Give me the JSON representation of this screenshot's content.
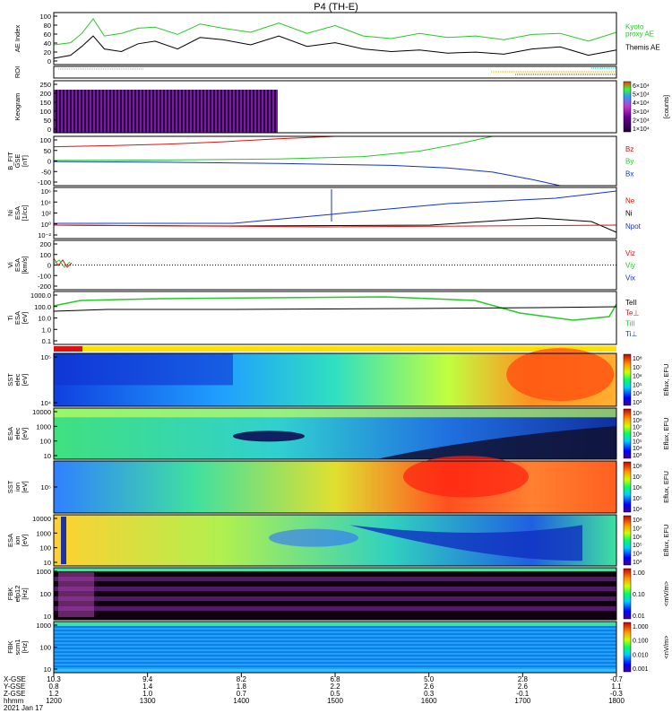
{
  "title": "P4 (TH-E)",
  "colors": {
    "kyoto": "#22cc22",
    "themis": "#000000",
    "red": "#dd1111",
    "green": "#22cc22",
    "blue": "#1133cc",
    "orange": "#ffa500",
    "yellow": "#ffe000",
    "cyan": "#00dddd"
  },
  "chart_data": [
    {
      "type": "line",
      "id": "ae",
      "ylabel": "AE Index",
      "ylim": [
        0,
        100
      ],
      "yticks": [
        "100",
        "80",
        "60",
        "40",
        "20",
        "0"
      ],
      "legend": [
        {
          "name": "Kyoto\nproxy AE",
          "color": "#22cc22"
        },
        {
          "name": "Themis AE",
          "color": "#000000"
        }
      ],
      "series": [
        {
          "name": "Kyoto proxy AE",
          "color": "#22cc22",
          "x": [
            0,
            0.03,
            0.05,
            0.07,
            0.09,
            0.12,
            0.15,
            0.18,
            0.22,
            0.26,
            0.3,
            0.35,
            0.4,
            0.45,
            0.5,
            0.55,
            0.6,
            0.65,
            0.7,
            0.75,
            0.8,
            0.85,
            0.9,
            0.95,
            1
          ],
          "values": [
            38,
            42,
            60,
            88,
            55,
            60,
            70,
            72,
            58,
            78,
            70,
            62,
            80,
            60,
            75,
            55,
            50,
            60,
            52,
            55,
            48,
            58,
            60,
            45,
            62
          ]
        },
        {
          "name": "Themis AE",
          "color": "#000000",
          "x": [
            0,
            0.03,
            0.05,
            0.07,
            0.09,
            0.12,
            0.15,
            0.18,
            0.22,
            0.26,
            0.3,
            0.35,
            0.4,
            0.45,
            0.5,
            0.55,
            0.6,
            0.65,
            0.7,
            0.75,
            0.8,
            0.85,
            0.9,
            0.95,
            1
          ],
          "values": [
            12,
            18,
            35,
            55,
            30,
            25,
            40,
            45,
            30,
            52,
            48,
            38,
            55,
            35,
            42,
            30,
            25,
            28,
            22,
            24,
            20,
            30,
            34,
            18,
            28
          ]
        }
      ]
    },
    {
      "type": "line",
      "id": "roi",
      "ylabel": "ROI",
      "legend": []
    },
    {
      "type": "heatmap",
      "id": "keogram",
      "ylabel": "Keogram",
      "ylim": [
        0,
        256
      ],
      "yticks": [
        "250",
        "200",
        "150",
        "100",
        "50",
        "0"
      ],
      "colorbar": {
        "label": "[counts]",
        "ticks": [
          "6×10⁴",
          "5×10⁴",
          "4×10⁴",
          "3×10⁴",
          "2×10⁴",
          "1×10⁴"
        ]
      }
    },
    {
      "type": "line",
      "id": "bfit",
      "ylabel": "B_FIT\nGSE\n[nT]",
      "ylim": [
        -100,
        100
      ],
      "yticks": [
        "100",
        "50",
        "0",
        "-50",
        "-100"
      ],
      "legend": [
        {
          "name": "Bz",
          "color": "#dd1111"
        },
        {
          "name": "By",
          "color": "#22cc22"
        },
        {
          "name": "Bx",
          "color": "#1133cc"
        }
      ],
      "series": [
        {
          "name": "Bz",
          "color": "#dd1111",
          "x": [
            0,
            0.1,
            0.2,
            0.3,
            0.4,
            0.5
          ],
          "values": [
            58,
            62,
            68,
            78,
            90,
            100
          ]
        },
        {
          "name": "By",
          "color": "#22cc22",
          "x": [
            0,
            0.2,
            0.4,
            0.55,
            0.65,
            0.72,
            0.78
          ],
          "values": [
            2,
            4,
            8,
            18,
            40,
            70,
            100
          ]
        },
        {
          "name": "Bx",
          "color": "#1133cc",
          "x": [
            0,
            0.2,
            0.4,
            0.6,
            0.7,
            0.78,
            0.85,
            0.9
          ],
          "values": [
            -2,
            -5,
            -10,
            -18,
            -28,
            -45,
            -75,
            -100
          ]
        }
      ]
    },
    {
      "type": "line",
      "id": "ni",
      "ylabel": "Ni\nESA\n[1/cc]",
      "ylog": true,
      "yticks": [
        "10⁶",
        "10⁴",
        "10²",
        "10⁰",
        "10⁻²"
      ],
      "legend": [
        {
          "name": "Ne",
          "color": "#dd1111"
        },
        {
          "name": "Ni",
          "color": "#000000"
        },
        {
          "name": "Npot",
          "color": "#1133cc"
        }
      ]
    },
    {
      "type": "line",
      "id": "vi",
      "ylabel": "Vi\nESA\n[km/s]",
      "yticks": [
        "200",
        "100",
        "0",
        "-100",
        "-200"
      ],
      "legend": [
        {
          "name": "Viz",
          "color": "#dd1111"
        },
        {
          "name": "Viy",
          "color": "#22cc22"
        },
        {
          "name": "Vix",
          "color": "#1133cc"
        }
      ]
    },
    {
      "type": "line",
      "id": "ti",
      "ylabel": "Ti\nESA\n[eV]",
      "ylog": true,
      "yticks": [
        "1000.0",
        "100.0",
        "10.0",
        "1.0",
        "0.1"
      ],
      "legend": [
        {
          "name": "TeII",
          "color": "#000000"
        },
        {
          "name": "Te⊥",
          "color": "#dd1111"
        },
        {
          "name": "TiII",
          "color": "#22cc22"
        },
        {
          "name": "Ti⊥",
          "color": "#1133cc"
        }
      ]
    },
    {
      "type": "heatmap",
      "id": "sst_e",
      "ylabel": "SST\nelec\n[eV]",
      "yticks": [
        "10⁵",
        "10⁴"
      ],
      "colorbar": {
        "label": "Eflux, EFU",
        "ticks": [
          "10⁸",
          "10⁷",
          "10⁶",
          "10⁵",
          "10⁴",
          "10³"
        ]
      }
    },
    {
      "type": "heatmap",
      "id": "esa_e",
      "ylabel": "ESA\nelec\n[eV]",
      "yticks": [
        "10000",
        "1000",
        "100",
        "10"
      ],
      "colorbar": {
        "label": "Eflux, EFU",
        "ticks": [
          "10⁹",
          "10⁸",
          "10⁷",
          "10⁶",
          "10⁵",
          "10⁴",
          "10³"
        ]
      }
    },
    {
      "type": "heatmap",
      "id": "sst_i",
      "ylabel": "SST\nion\n[eV]",
      "yticks": [
        "10⁵"
      ],
      "colorbar": {
        "label": "Eflux, EFU",
        "ticks": [
          "10⁸",
          "10⁷",
          "10⁶",
          "10⁵",
          "10⁴"
        ]
      }
    },
    {
      "type": "heatmap",
      "id": "esa_i",
      "ylabel": "ESA\nion\n[eV]",
      "yticks": [
        "10000",
        "1000",
        "100",
        "10"
      ],
      "colorbar": {
        "label": "Eflux, EFU",
        "ticks": [
          "10⁸",
          "10⁷",
          "10⁶",
          "10⁵",
          "10⁴",
          "10³"
        ]
      }
    },
    {
      "type": "heatmap",
      "id": "fbk1",
      "ylabel": "FBK\nefp12\n[Hz]",
      "yticks": [
        "1000",
        "100",
        "10"
      ],
      "colorbar": {
        "label": "<mV/m>",
        "ticks": [
          "1.00",
          "0.10",
          "0.01"
        ]
      }
    },
    {
      "type": "heatmap",
      "id": "fbk2",
      "ylabel": "FBK\nscm1\n[Hz]",
      "yticks": [
        "1000",
        "100",
        "10"
      ],
      "colorbar": {
        "label": "<nV/m>",
        "ticks": [
          "1.000",
          "0.100",
          "0.010",
          "0.001"
        ]
      }
    }
  ],
  "xaxis": {
    "row_labels": [
      "X-GSE",
      "Y-GSE",
      "Z-GSE",
      "hhmm",
      "2021 Jan 17"
    ],
    "cols": [
      [
        "10.3",
        "0.8",
        "1.2",
        "1200"
      ],
      [
        "9.4",
        "1.4",
        "1.0",
        "1300"
      ],
      [
        "8.2",
        "1.8",
        "0.7",
        "1400"
      ],
      [
        "6.8",
        "2.2",
        "0.5",
        "1500"
      ],
      [
        "5.0",
        "2.6",
        "0.3",
        "1600"
      ],
      [
        "2.8",
        "2.6",
        "-0.1",
        "1700"
      ],
      [
        "-0.7",
        "1.1",
        "-0.3",
        "1800"
      ]
    ]
  }
}
